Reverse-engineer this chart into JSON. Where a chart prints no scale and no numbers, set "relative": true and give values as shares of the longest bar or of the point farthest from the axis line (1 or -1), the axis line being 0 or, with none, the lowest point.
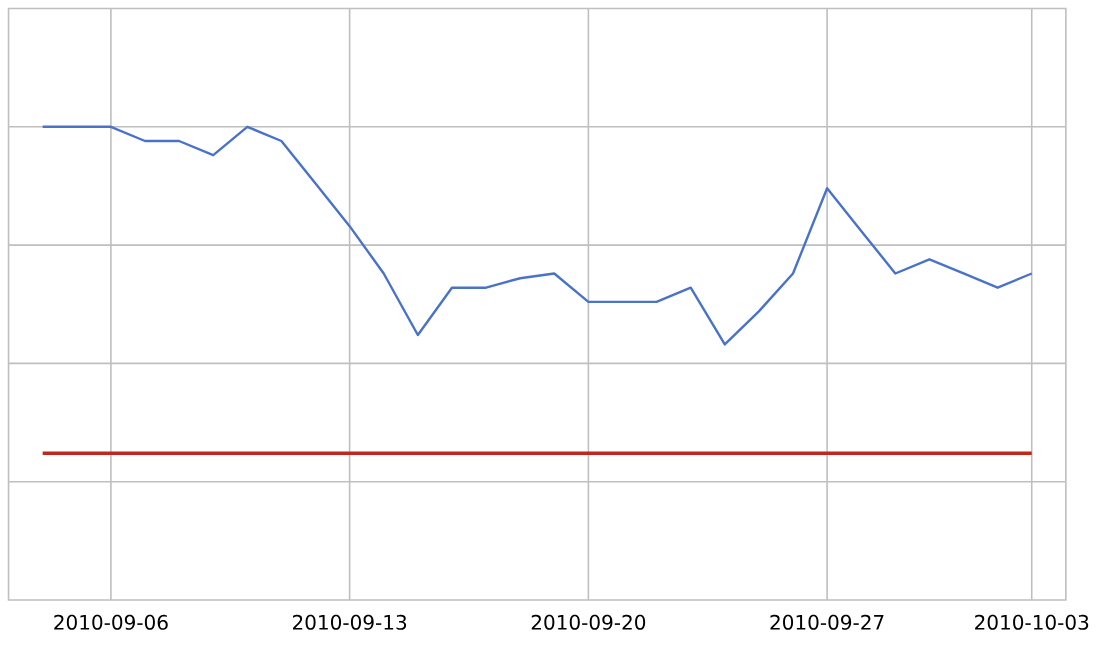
{
  "chart_data": {
    "type": "line",
    "relative": true,
    "grid": true,
    "marker": "none",
    "line_style": "solid",
    "xlim": [
      "2010-09-03",
      "2010-10-04"
    ],
    "xticks": [
      "2010-09-06",
      "2010-09-13",
      "2010-09-20",
      "2010-09-27",
      "2010-10-03"
    ],
    "series": [
      {
        "color": "#4a72c8",
        "x": [
          "2010-09-04",
          "2010-09-05",
          "2010-09-06",
          "2010-09-07",
          "2010-09-08",
          "2010-09-09",
          "2010-09-10",
          "2010-09-11",
          "2010-09-12",
          "2010-09-13",
          "2010-09-14",
          "2010-09-15",
          "2010-09-16",
          "2010-09-17",
          "2010-09-18",
          "2010-09-19",
          "2010-09-20",
          "2010-09-21",
          "2010-09-22",
          "2010-09-23",
          "2010-09-24",
          "2010-09-25",
          "2010-09-26",
          "2010-09-27",
          "2010-09-28",
          "2010-09-29",
          "2010-09-30",
          "2010-10-01",
          "2010-10-02",
          "2010-10-03"
        ],
        "values": [
          1,
          1,
          1,
          0.97,
          0.97,
          0.94,
          1,
          0.97,
          0.88,
          0.79,
          0.69,
          0.56,
          0.66,
          0.66,
          0.68,
          0.69,
          0.63,
          0.63,
          0.63,
          0.66,
          0.54,
          0.61,
          0.69,
          0.87,
          0.78,
          0.69,
          0.72,
          0.69,
          0.66,
          0.69
        ]
      },
      {
        "color": "#c0281e",
        "x": [
          "2010-09-04",
          "2010-10-03"
        ],
        "values": [
          0.31,
          0.31
        ]
      }
    ]
  }
}
